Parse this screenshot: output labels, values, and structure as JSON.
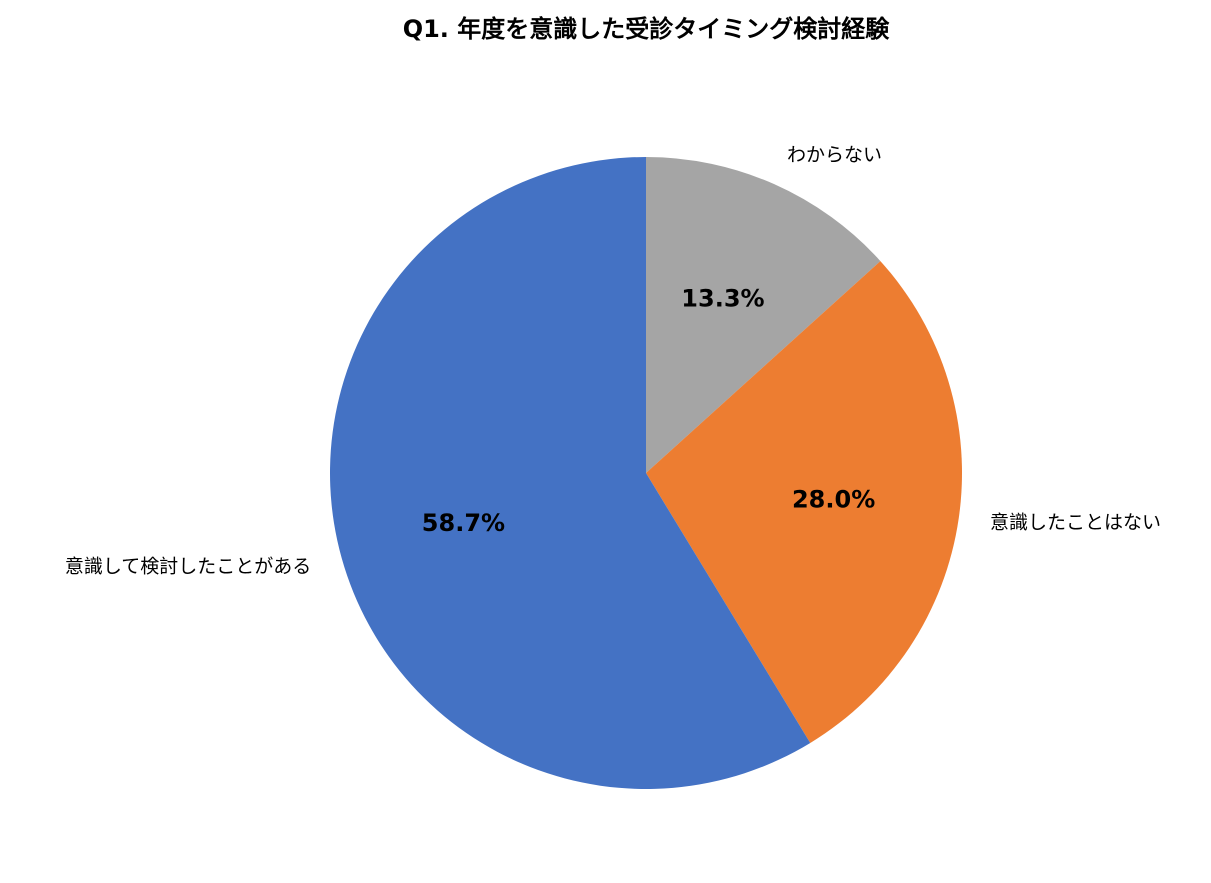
{
  "chart_data": {
    "type": "pie",
    "title": "Q1. 年度を意識した受診タイミング検討経験",
    "categories": [
      "わからない",
      "意識したことはない",
      "意識して検討したことがある"
    ],
    "values": [
      13.3,
      28.0,
      58.7
    ],
    "value_labels": [
      "13.3%",
      "28.0%",
      "58.7%"
    ],
    "colors": [
      "#a5a5a5",
      "#ed7d31",
      "#4472c4"
    ]
  }
}
